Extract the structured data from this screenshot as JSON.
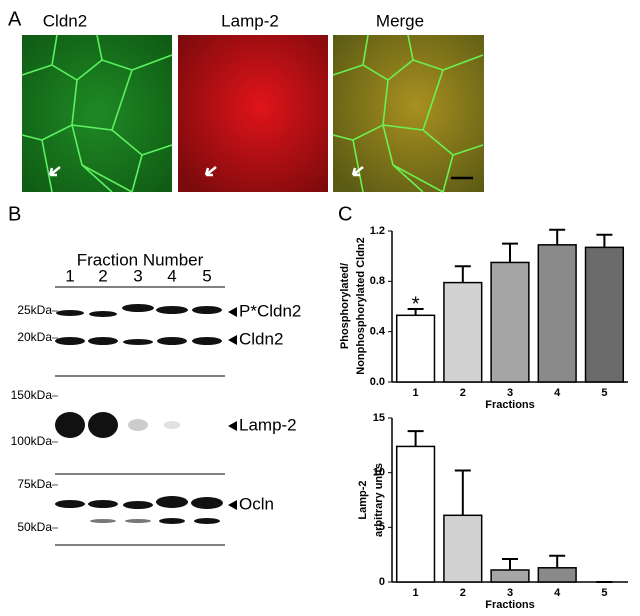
{
  "panels": {
    "a": "A",
    "b": "B",
    "c": "C"
  },
  "images": {
    "titles": [
      "Cldn2",
      "Lamp-2",
      "Merge"
    ]
  },
  "blot": {
    "title": "Fraction Number",
    "lanes": [
      "1",
      "2",
      "3",
      "4",
      "5"
    ],
    "markers": [
      "25kDa",
      "20kDa",
      "150kDa",
      "100kDa",
      "75kDa",
      "50kDa"
    ],
    "bands": [
      "P*Cldn2",
      "Cldn2",
      "Lamp-2",
      "Ocln"
    ]
  },
  "chart_data": [
    {
      "type": "bar",
      "ylabel": [
        "Phosphorylated/",
        "Nonphosphorylated Cldn2"
      ],
      "xlabel": "Fractions",
      "categories": [
        "1",
        "2",
        "3",
        "4",
        "5"
      ],
      "values": [
        0.53,
        0.79,
        0.95,
        1.09,
        1.07
      ],
      "errors": [
        0.05,
        0.13,
        0.15,
        0.12,
        0.1
      ],
      "colors": [
        "#ffffff",
        "#d2d2d2",
        "#a6a6a6",
        "#8a8a8a",
        "#6b6b6b"
      ],
      "annotation": "*",
      "ylim": [
        0,
        1.2
      ],
      "yticks": [
        {
          "value": 0,
          "label": "0.0"
        },
        0.4,
        0.8,
        1.2
      ]
    },
    {
      "type": "bar",
      "ylabel": [
        "Lamp-2",
        "arbitrary units"
      ],
      "xlabel": "Fractions",
      "categories": [
        "1",
        "2",
        "3",
        "4",
        "5"
      ],
      "values": [
        12.4,
        6.1,
        1.1,
        1.3,
        0
      ],
      "errors": [
        1.4,
        4.1,
        1.0,
        1.1,
        0
      ],
      "colors": [
        "#ffffff",
        "#d2d2d2",
        "#a6a6a6",
        "#8a8a8a",
        "#6b6b6b"
      ],
      "ylim": [
        0,
        15
      ],
      "yticks": [
        0,
        5,
        10,
        15
      ]
    }
  ]
}
